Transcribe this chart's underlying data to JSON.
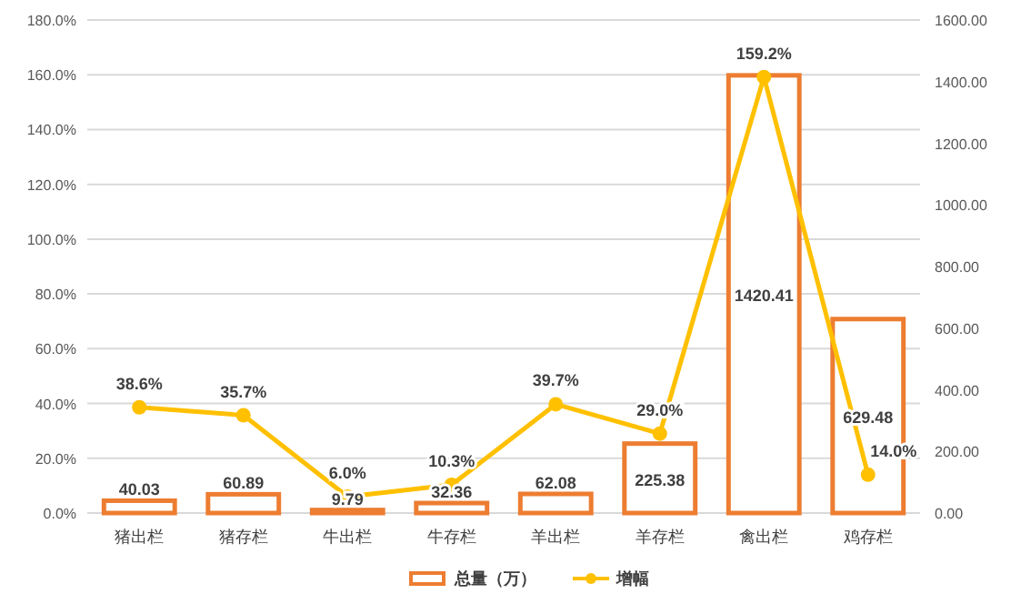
{
  "chart_data": {
    "type": "bar",
    "categories": [
      "猪出栏",
      "猪存栏",
      "牛出栏",
      "牛存栏",
      "羊出栏",
      "羊存栏",
      "禽出栏",
      "鸡存栏"
    ],
    "series": [
      {
        "name": "总量（万）",
        "axis": "y2",
        "color": "#ed7d31",
        "values": [
          40.03,
          60.89,
          9.79,
          32.36,
          62.08,
          225.38,
          1420.41,
          629.48
        ],
        "value_labels": [
          "40.03",
          "60.89",
          "9.79",
          "32.36",
          "62.08",
          "225.38",
          "1420.41",
          "629.48"
        ]
      },
      {
        "name": "增幅",
        "type": "line",
        "axis": "y",
        "color": "#ffc000",
        "marker": "circle",
        "values": [
          38.6,
          35.7,
          6.0,
          10.3,
          39.7,
          29.0,
          159.2,
          14.0
        ],
        "value_labels": [
          "38.6%",
          "35.7%",
          "6.0%",
          "10.3%",
          "39.7%",
          "29.0%",
          "159.2%",
          "14.0%"
        ]
      }
    ],
    "ylim": [
      0,
      180
    ],
    "yticks": [
      {
        "value": 0,
        "label": "0.0%"
      },
      {
        "value": 20,
        "label": "20.0%"
      },
      {
        "value": 40,
        "label": "40.0%"
      },
      {
        "value": 60,
        "label": "60.0%"
      },
      {
        "value": 80,
        "label": "80.0%"
      },
      {
        "value": 100,
        "label": "100.0%"
      },
      {
        "value": 120,
        "label": "120.0%"
      },
      {
        "value": 140,
        "label": "140.0%"
      },
      {
        "value": 160,
        "label": "160.0%"
      },
      {
        "value": 180,
        "label": "180.0%"
      }
    ],
    "y2lim": [
      0,
      1600
    ],
    "y2ticks": [
      {
        "value": 0,
        "label": "0.00"
      },
      {
        "value": 200,
        "label": "200.00"
      },
      {
        "value": 400,
        "label": "400.00"
      },
      {
        "value": 600,
        "label": "600.00"
      },
      {
        "value": 800,
        "label": "800.00"
      },
      {
        "value": 1000,
        "label": "1000.00"
      },
      {
        "value": 1200,
        "label": "1200.00"
      },
      {
        "value": 1400,
        "label": "1400.00"
      },
      {
        "value": 1600,
        "label": "1600.00"
      }
    ],
    "grid": "y",
    "legend": "bottom"
  }
}
